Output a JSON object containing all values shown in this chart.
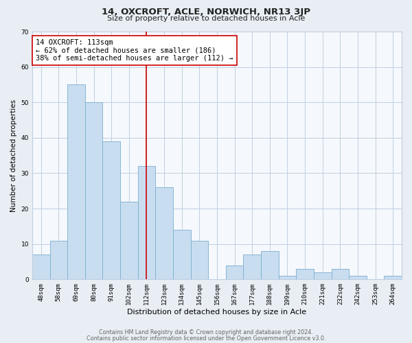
{
  "title": "14, OXCROFT, ACLE, NORWICH, NR13 3JP",
  "subtitle": "Size of property relative to detached houses in Acle",
  "xlabel": "Distribution of detached houses by size in Acle",
  "ylabel": "Number of detached properties",
  "bar_labels": [
    "48sqm",
    "58sqm",
    "69sqm",
    "80sqm",
    "91sqm",
    "102sqm",
    "112sqm",
    "123sqm",
    "134sqm",
    "145sqm",
    "156sqm",
    "167sqm",
    "177sqm",
    "188sqm",
    "199sqm",
    "210sqm",
    "221sqm",
    "232sqm",
    "242sqm",
    "253sqm",
    "264sqm"
  ],
  "bar_values": [
    7,
    11,
    55,
    50,
    39,
    22,
    32,
    26,
    14,
    11,
    0,
    4,
    7,
    8,
    1,
    3,
    2,
    3,
    1,
    0,
    1
  ],
  "bar_color": "#c9ddf0",
  "bar_edge_color": "#7aaecc",
  "highlight_bar_index": 6,
  "vline_color": "#cc0000",
  "vline_x": 6,
  "annotation_text": "14 OXCROFT: 113sqm\n← 62% of detached houses are smaller (186)\n38% of semi-detached houses are larger (112) →",
  "annotation_box_color": "#ffffff",
  "annotation_box_edge_color": "#cc0000",
  "ylim": [
    0,
    70
  ],
  "yticks": [
    0,
    10,
    20,
    30,
    40,
    50,
    60,
    70
  ],
  "footer1": "Contains HM Land Registry data © Crown copyright and database right 2024.",
  "footer2": "Contains public sector information licensed under the Open Government Licence v3.0.",
  "bg_color": "#e8eef4",
  "plot_bg_color": "#f5f8fc",
  "grid_color": "#c0cfe0",
  "title_fontsize": 9.5,
  "subtitle_fontsize": 8.0,
  "xlabel_fontsize": 8.0,
  "ylabel_fontsize": 7.5,
  "tick_fontsize": 6.5,
  "annotation_fontsize": 7.5,
  "footer_fontsize": 5.8
}
